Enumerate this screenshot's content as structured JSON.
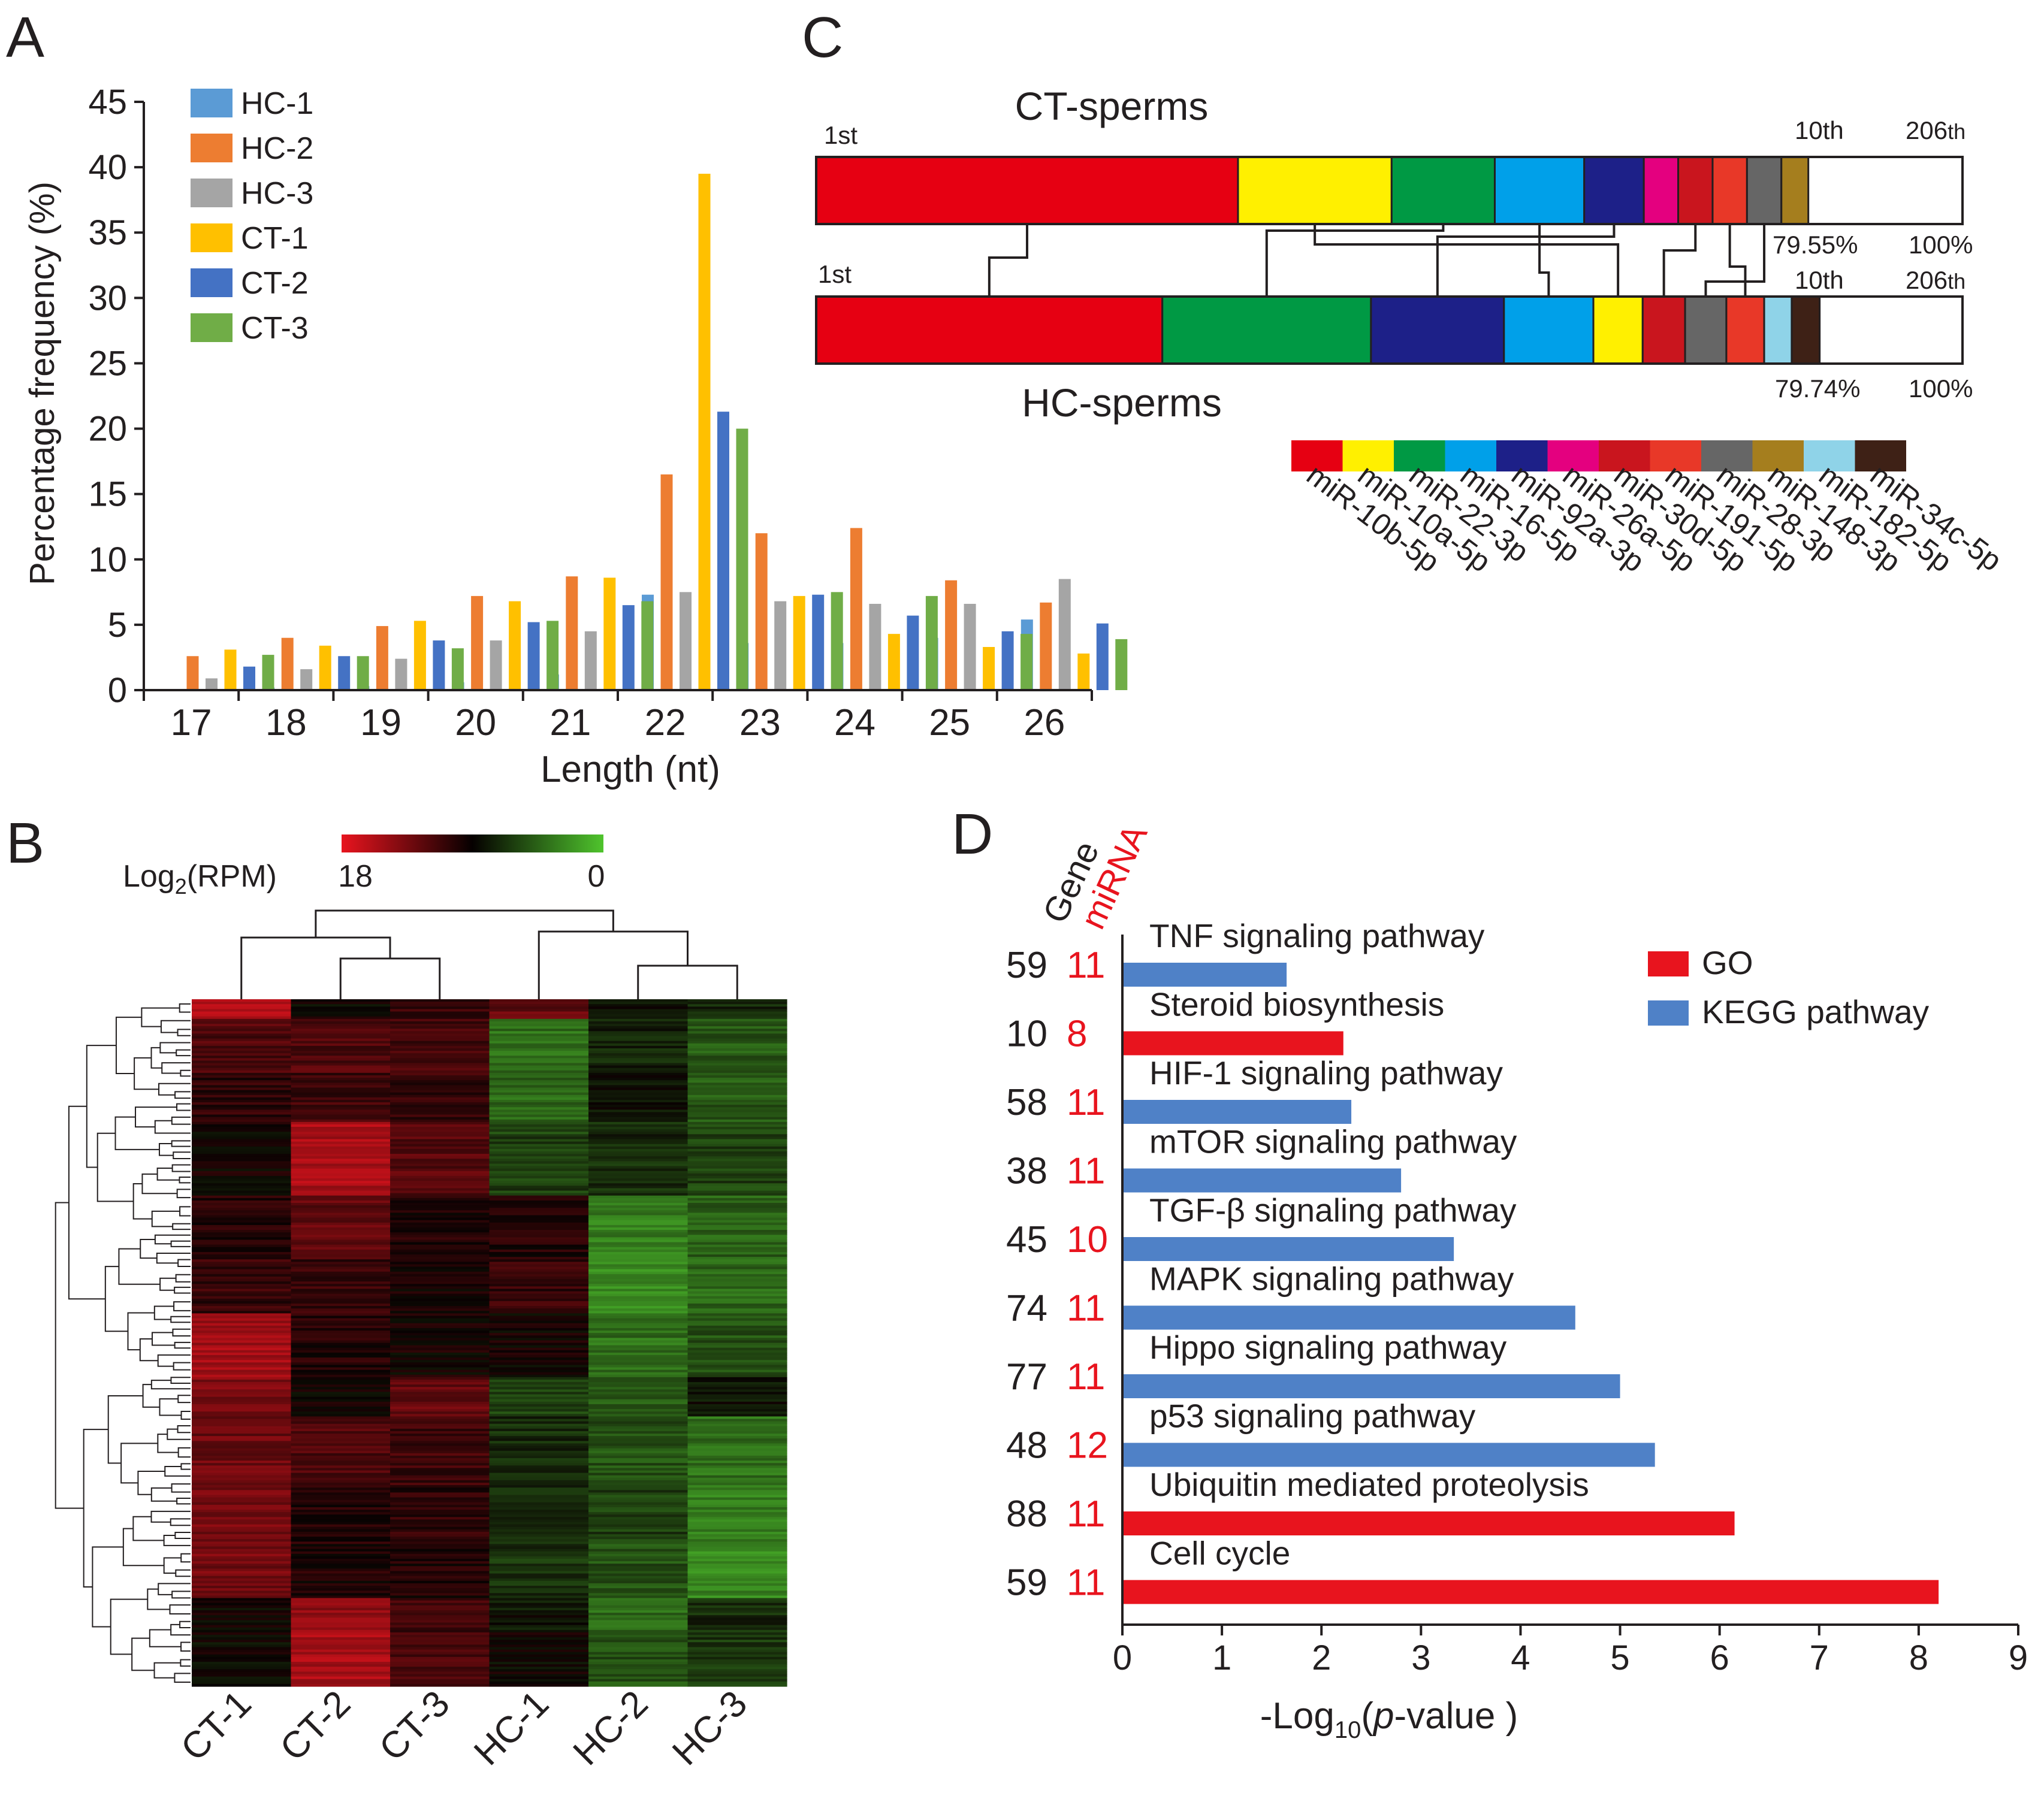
{
  "panel_labels": {
    "A": "A",
    "B": "B",
    "C": "C",
    "D": "D"
  },
  "colors": {
    "HC-1": "#5b9bd5",
    "HC-2": "#ed7d31",
    "HC-3": "#a5a5a5",
    "CT-1": "#ffc000",
    "CT-2": "#4472c4",
    "CT-3": "#70ad47",
    "GO": "#e8141e",
    "KEGG": "#4f81c7",
    "heat_high": "#e8141e",
    "heat_mid": "#050000",
    "heat_low": "#4fc42d"
  },
  "chart_data": [
    {
      "id": "A",
      "type": "bar",
      "title": "",
      "xlabel": "Length (nt)",
      "ylabel": "Percentage frequency (%)",
      "ylim": [
        0,
        45
      ],
      "yticks": [
        0,
        5,
        10,
        15,
        20,
        25,
        30,
        35,
        40,
        45
      ],
      "legend_position": "top-left",
      "categories": [
        "17",
        "18",
        "19",
        "20",
        "21",
        "22",
        "23",
        "24",
        "25",
        "26"
      ],
      "series": [
        {
          "name": "HC-1",
          "values": [
            0.0,
            0.2,
            0.3,
            0.6,
            1.2,
            7.3,
            3.6,
            3.6,
            4.0,
            5.4
          ]
        },
        {
          "name": "HC-2",
          "values": [
            2.6,
            4.0,
            4.9,
            7.2,
            8.7,
            16.5,
            12.0,
            12.4,
            8.4,
            6.7
          ]
        },
        {
          "name": "HC-3",
          "values": [
            0.9,
            1.6,
            2.4,
            3.8,
            4.5,
            7.5,
            6.8,
            6.6,
            6.6,
            8.5
          ]
        },
        {
          "name": "CT-1",
          "values": [
            3.1,
            3.4,
            5.3,
            6.8,
            8.6,
            39.5,
            7.2,
            4.3,
            3.3,
            2.8
          ]
        },
        {
          "name": "CT-2",
          "values": [
            1.8,
            2.6,
            3.8,
            5.2,
            6.5,
            21.3,
            7.3,
            5.7,
            4.5,
            5.1
          ]
        },
        {
          "name": "CT-3",
          "values": [
            2.7,
            2.6,
            3.2,
            5.3,
            6.8,
            20.0,
            7.5,
            7.2,
            4.3,
            3.9
          ]
        }
      ]
    },
    {
      "id": "B",
      "type": "heatmap",
      "title": "",
      "legend_label_base": "Log",
      "legend_label_sub": "2",
      "legend_label_rest": "(RPM)",
      "legend_high": "18",
      "legend_low": "0",
      "legend_range": [
        18,
        0
      ],
      "columns": [
        "CT-1",
        "CT-2",
        "CT-3",
        "HC-1",
        "HC-2",
        "HC-3"
      ],
      "column_blocks": [
        {
          "rows": 8,
          "values": [
            0.9,
            0.5,
            0.6,
            0.7,
            0.45,
            0.4
          ]
        },
        {
          "rows": 22,
          "values": [
            0.66,
            0.66,
            0.64,
            0.22,
            0.42,
            0.28
          ]
        },
        {
          "rows": 20,
          "values": [
            0.58,
            0.62,
            0.6,
            0.24,
            0.46,
            0.28
          ]
        },
        {
          "rows": 30,
          "values": [
            0.52,
            0.86,
            0.68,
            0.34,
            0.4,
            0.34
          ]
        },
        {
          "rows": 26,
          "values": [
            0.56,
            0.7,
            0.55,
            0.56,
            0.18,
            0.26
          ]
        },
        {
          "rows": 22,
          "values": [
            0.6,
            0.6,
            0.52,
            0.6,
            0.16,
            0.24
          ]
        },
        {
          "rows": 26,
          "values": [
            0.84,
            0.56,
            0.52,
            0.52,
            0.22,
            0.3
          ]
        },
        {
          "rows": 16,
          "values": [
            0.76,
            0.52,
            0.7,
            0.34,
            0.26,
            0.46
          ]
        },
        {
          "rows": 28,
          "values": [
            0.72,
            0.66,
            0.62,
            0.4,
            0.3,
            0.22
          ]
        },
        {
          "rows": 24,
          "values": [
            0.74,
            0.55,
            0.58,
            0.42,
            0.34,
            0.18
          ]
        },
        {
          "rows": 22,
          "values": [
            0.74,
            0.55,
            0.55,
            0.38,
            0.3,
            0.16
          ]
        },
        {
          "rows": 14,
          "values": [
            0.5,
            0.8,
            0.62,
            0.46,
            0.24,
            0.4
          ]
        },
        {
          "rows": 22,
          "values": [
            0.5,
            0.86,
            0.64,
            0.5,
            0.3,
            0.36
          ]
        }
      ]
    },
    {
      "id": "C",
      "type": "bar",
      "title": "",
      "top_label": "CT-sperms",
      "bottom_label": "HC-sperms",
      "rank_first": "1st",
      "rank_tenth": "10th",
      "rank_last_prefix": "206",
      "rank_last_suffix": "th",
      "ct_cum_percent": "79.55%",
      "hc_cum_percent": "79.74%",
      "end_percent": "100%",
      "legend": [
        "miR-10b-5p",
        "miR-10a-5p",
        "miR-22-3p",
        "miR-16-5p",
        "miR-92a-3p",
        "miR-26a-5p",
        "miR-30d-5p",
        "miR-191-5p",
        "miR-28-3p",
        "miR-148-3p",
        "miR-182-5p",
        "miR-34c-5p"
      ],
      "legend_colors": [
        "#e60012",
        "#fff000",
        "#009944",
        "#00a0e9",
        "#1d2088",
        "#e4007f",
        "#c9151e",
        "#e83828",
        "#666666",
        "#a57e1e",
        "#8fd3e8",
        "#3e2116"
      ],
      "ct_segments": [
        {
          "name": "miR-10b-5p",
          "percent": 36.8
        },
        {
          "name": "miR-10a-5p",
          "percent": 13.4
        },
        {
          "name": "miR-22-3p",
          "percent": 9.0
        },
        {
          "name": "miR-16-5p",
          "percent": 7.8
        },
        {
          "name": "miR-92a-3p",
          "percent": 5.2
        },
        {
          "name": "miR-26a-5p",
          "percent": 3.0
        },
        {
          "name": "miR-30d-5p",
          "percent": 3.0
        },
        {
          "name": "miR-191-5p",
          "percent": 3.0
        },
        {
          "name": "miR-28-3p",
          "percent": 3.0
        },
        {
          "name": "miR-148-3p",
          "percent": 2.35
        }
      ],
      "hc_segments": [
        {
          "name": "miR-10b-5p",
          "percent": 30.2
        },
        {
          "name": "miR-22-3p",
          "percent": 18.2
        },
        {
          "name": "miR-92a-3p",
          "percent": 11.6
        },
        {
          "name": "miR-16-5p",
          "percent": 7.8
        },
        {
          "name": "miR-10a-5p",
          "percent": 4.3
        },
        {
          "name": "miR-30d-5p",
          "percent": 3.7
        },
        {
          "name": "miR-28-3p",
          "percent": 3.6
        },
        {
          "name": "miR-191-5p",
          "percent": 3.3
        },
        {
          "name": "miR-182-5p",
          "percent": 2.4
        },
        {
          "name": "miR-34c-5p",
          "percent": 2.44
        }
      ]
    },
    {
      "id": "D",
      "type": "bar",
      "orientation": "horizontal",
      "title": "",
      "xlabel_prefix": "-Log",
      "xlabel_sub": "10",
      "xlabel_open": "(",
      "xlabel_italic": "p",
      "xlabel_rest": "-value )",
      "xlim": [
        0,
        9
      ],
      "xticks": [
        0,
        1,
        2,
        3,
        4,
        5,
        6,
        7,
        8,
        9
      ],
      "col_header_gene": "Gene",
      "col_header_mirna": "miRNA",
      "legend_position": "top-right",
      "legend": [
        {
          "name": "GO",
          "label": "GO"
        },
        {
          "name": "KEGG",
          "label": "KEGG pathway"
        }
      ],
      "bars": [
        {
          "label": "TNF signaling pathway",
          "gene": "59",
          "mirna": "11",
          "category": "KEGG",
          "value": 1.65
        },
        {
          "label": "Steroid biosynthesis",
          "gene": "10",
          "mirna": "8",
          "category": "GO",
          "value": 2.22
        },
        {
          "label": "HIF-1 signaling pathway",
          "gene": "58",
          "mirna": "11",
          "category": "KEGG",
          "value": 2.3
        },
        {
          "label": "mTOR signaling pathway",
          "gene": "38",
          "mirna": "11",
          "category": "KEGG",
          "value": 2.8
        },
        {
          "label": "TGF-β signaling pathway",
          "gene": "45",
          "mirna": "10",
          "category": "KEGG",
          "value": 3.33
        },
        {
          "label": "MAPK signaling pathway",
          "gene": "74",
          "mirna": "11",
          "category": "KEGG",
          "value": 4.55
        },
        {
          "label": "Hippo signaling pathway",
          "gene": "77",
          "mirna": "11",
          "category": "KEGG",
          "value": 5.0
        },
        {
          "label": "p53 signaling pathway",
          "gene": "48",
          "mirna": "12",
          "category": "KEGG",
          "value": 5.35
        },
        {
          "label": "Ubiquitin mediated proteolysis",
          "gene": "88",
          "mirna": "11",
          "category": "GO",
          "value": 6.15
        },
        {
          "label": "Cell cycle",
          "gene": "59",
          "mirna": "11",
          "category": "GO",
          "value": 8.2
        }
      ]
    }
  ]
}
